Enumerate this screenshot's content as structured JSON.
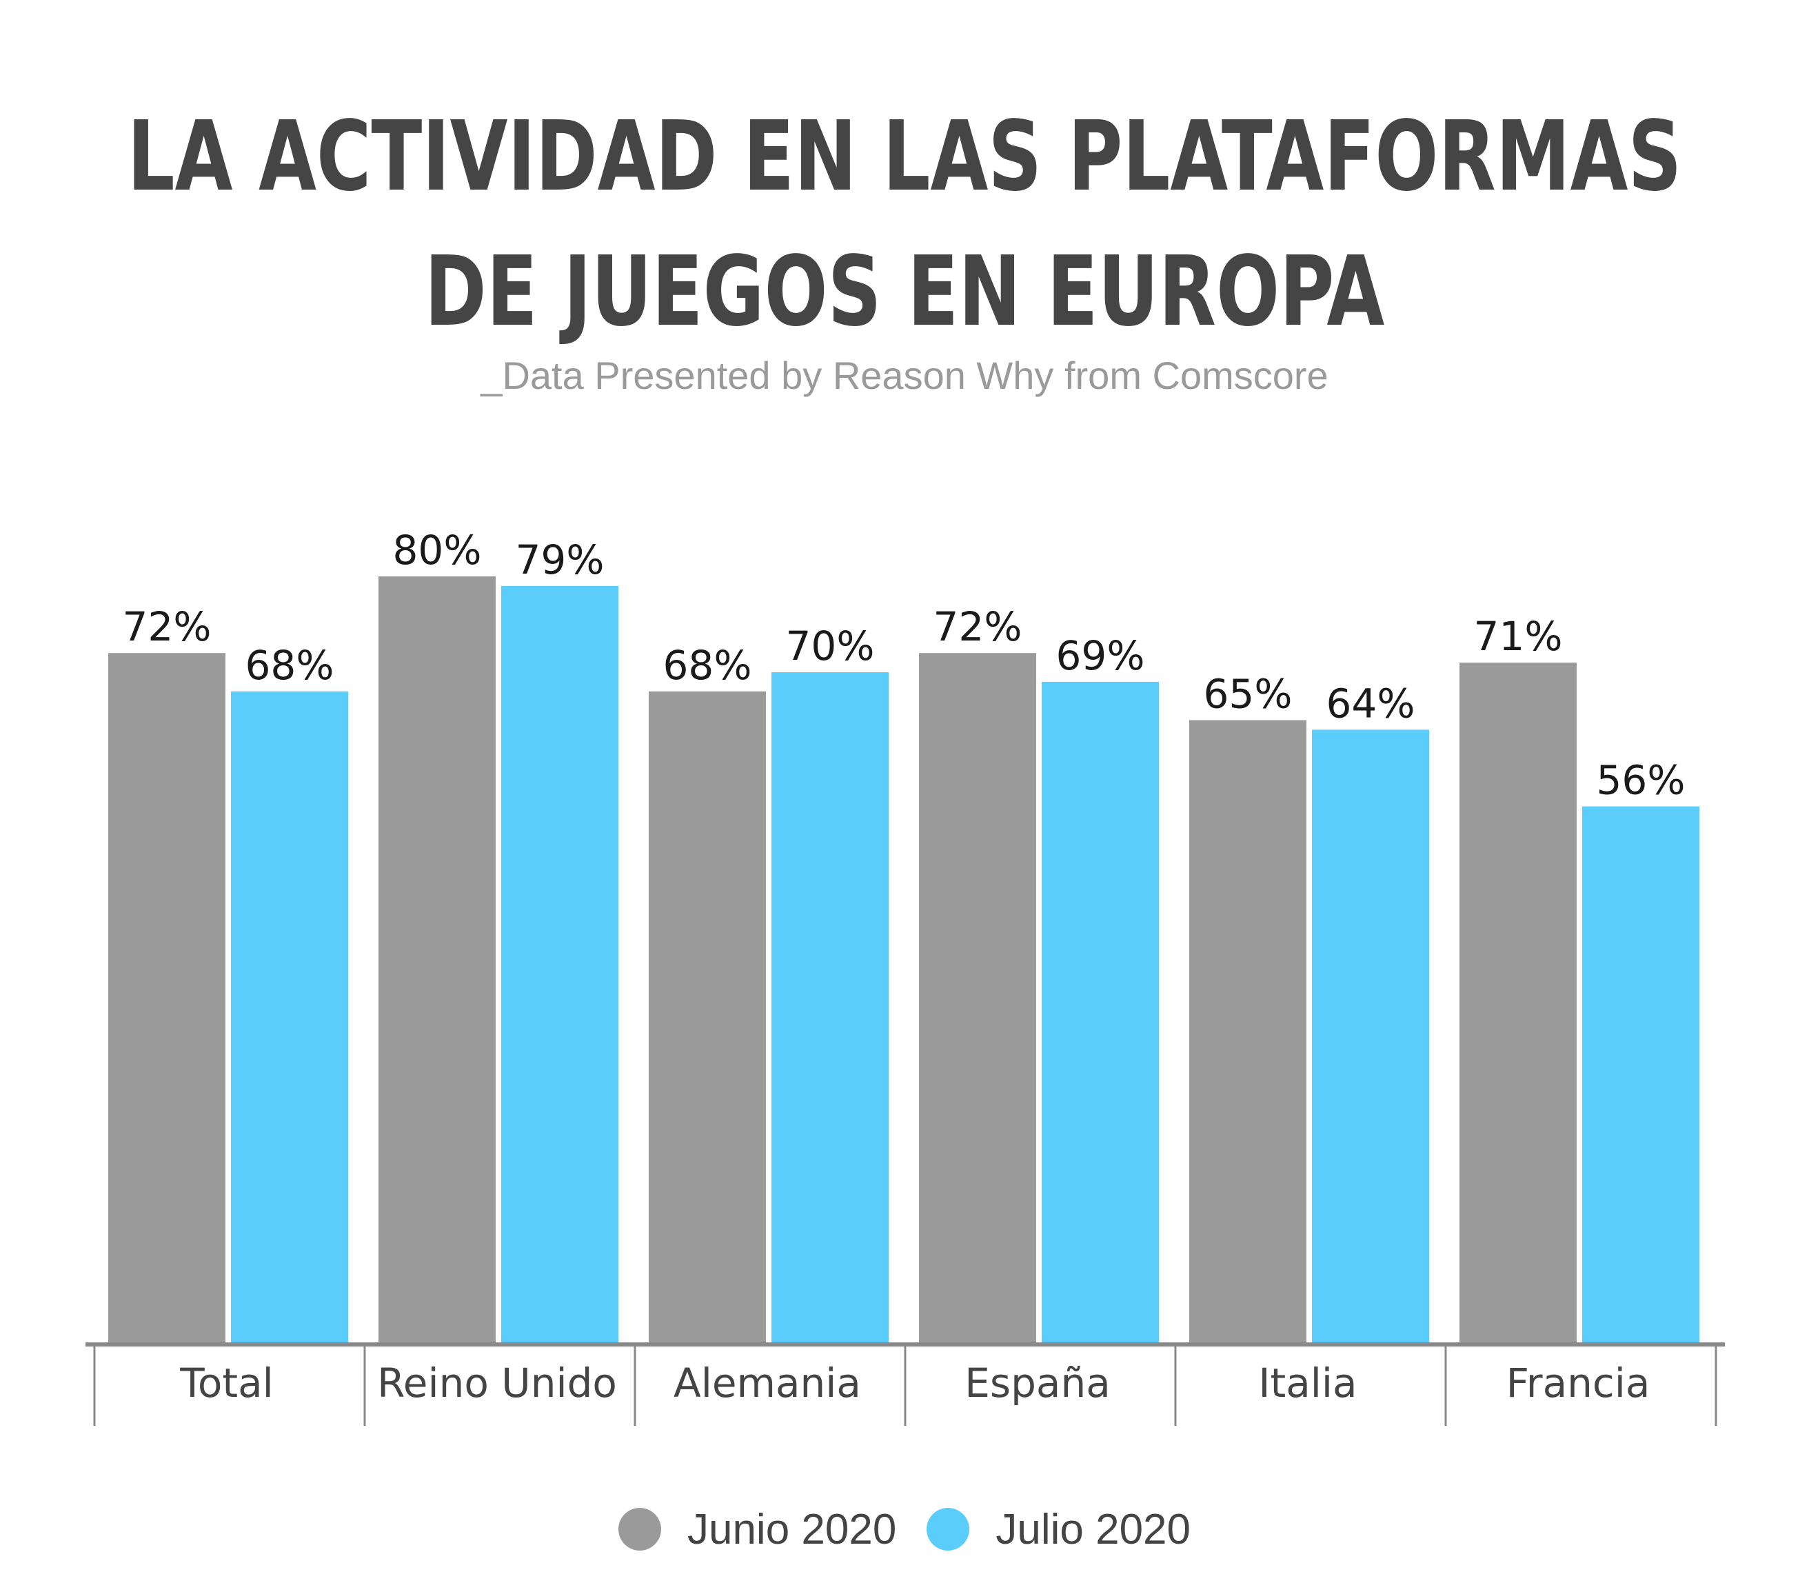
{
  "title": {
    "line1": "LA ACTIVIDAD EN LAS PLATAFORMAS",
    "line2": "DE JUEGOS EN EUROPA"
  },
  "subtitle": "_Data Presented by Reason Why from Comscore",
  "colors": {
    "junio": "#9a9a9a",
    "julio": "#5bcdfb",
    "axis": "#888888"
  },
  "chart_data": {
    "type": "bar",
    "title": "LA ACTIVIDAD EN LAS PLATAFORMAS DE JUEGOS EN EUROPA",
    "subtitle": "_Data Presented by Reason Why from Comscore",
    "categories": [
      "Total",
      "Reino Unido",
      "Alemania",
      "España",
      "Italia",
      "Francia"
    ],
    "series": [
      {
        "name": "Junio 2020",
        "values": [
          72,
          80,
          68,
          72,
          65,
          71
        ],
        "labels": [
          "72%",
          "80%",
          "68%",
          "72%",
          "65%",
          "71%"
        ]
      },
      {
        "name": "Julio 2020",
        "values": [
          68,
          79,
          70,
          69,
          64,
          56
        ],
        "labels": [
          "68%",
          "79%",
          "70%",
          "69%",
          "64%",
          "56%"
        ]
      }
    ],
    "unit": "%",
    "ylim": [
      0,
      80
    ],
    "grid": false,
    "legend": "bottom-center"
  }
}
